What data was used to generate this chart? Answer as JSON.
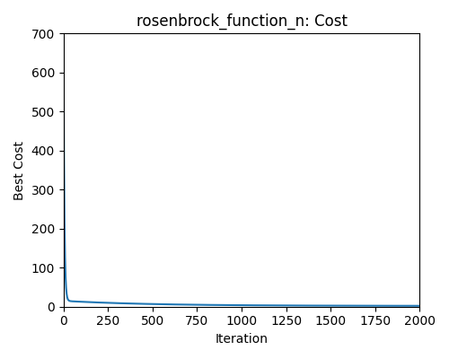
{
  "title": "rosenbrock_function_n: Cost",
  "xlabel": "Iteration",
  "ylabel": "Best Cost",
  "line_color": "#1f77b4",
  "line_width": 1.5,
  "xlim": [
    0,
    2000
  ],
  "ylim": [
    0,
    700
  ],
  "yticks": [
    0,
    100,
    200,
    300,
    400,
    500,
    600,
    700
  ],
  "xticks": [
    0,
    250,
    500,
    750,
    1000,
    1250,
    1500,
    1750,
    2000
  ],
  "n_iterations": 2000,
  "start_value": 690,
  "decay_fast": 5,
  "mid_value": 15,
  "decay_slow": 500,
  "end_value": 2.0,
  "background_color": "#ffffff",
  "figsize": [
    5.0,
    4.0
  ],
  "dpi": 100
}
